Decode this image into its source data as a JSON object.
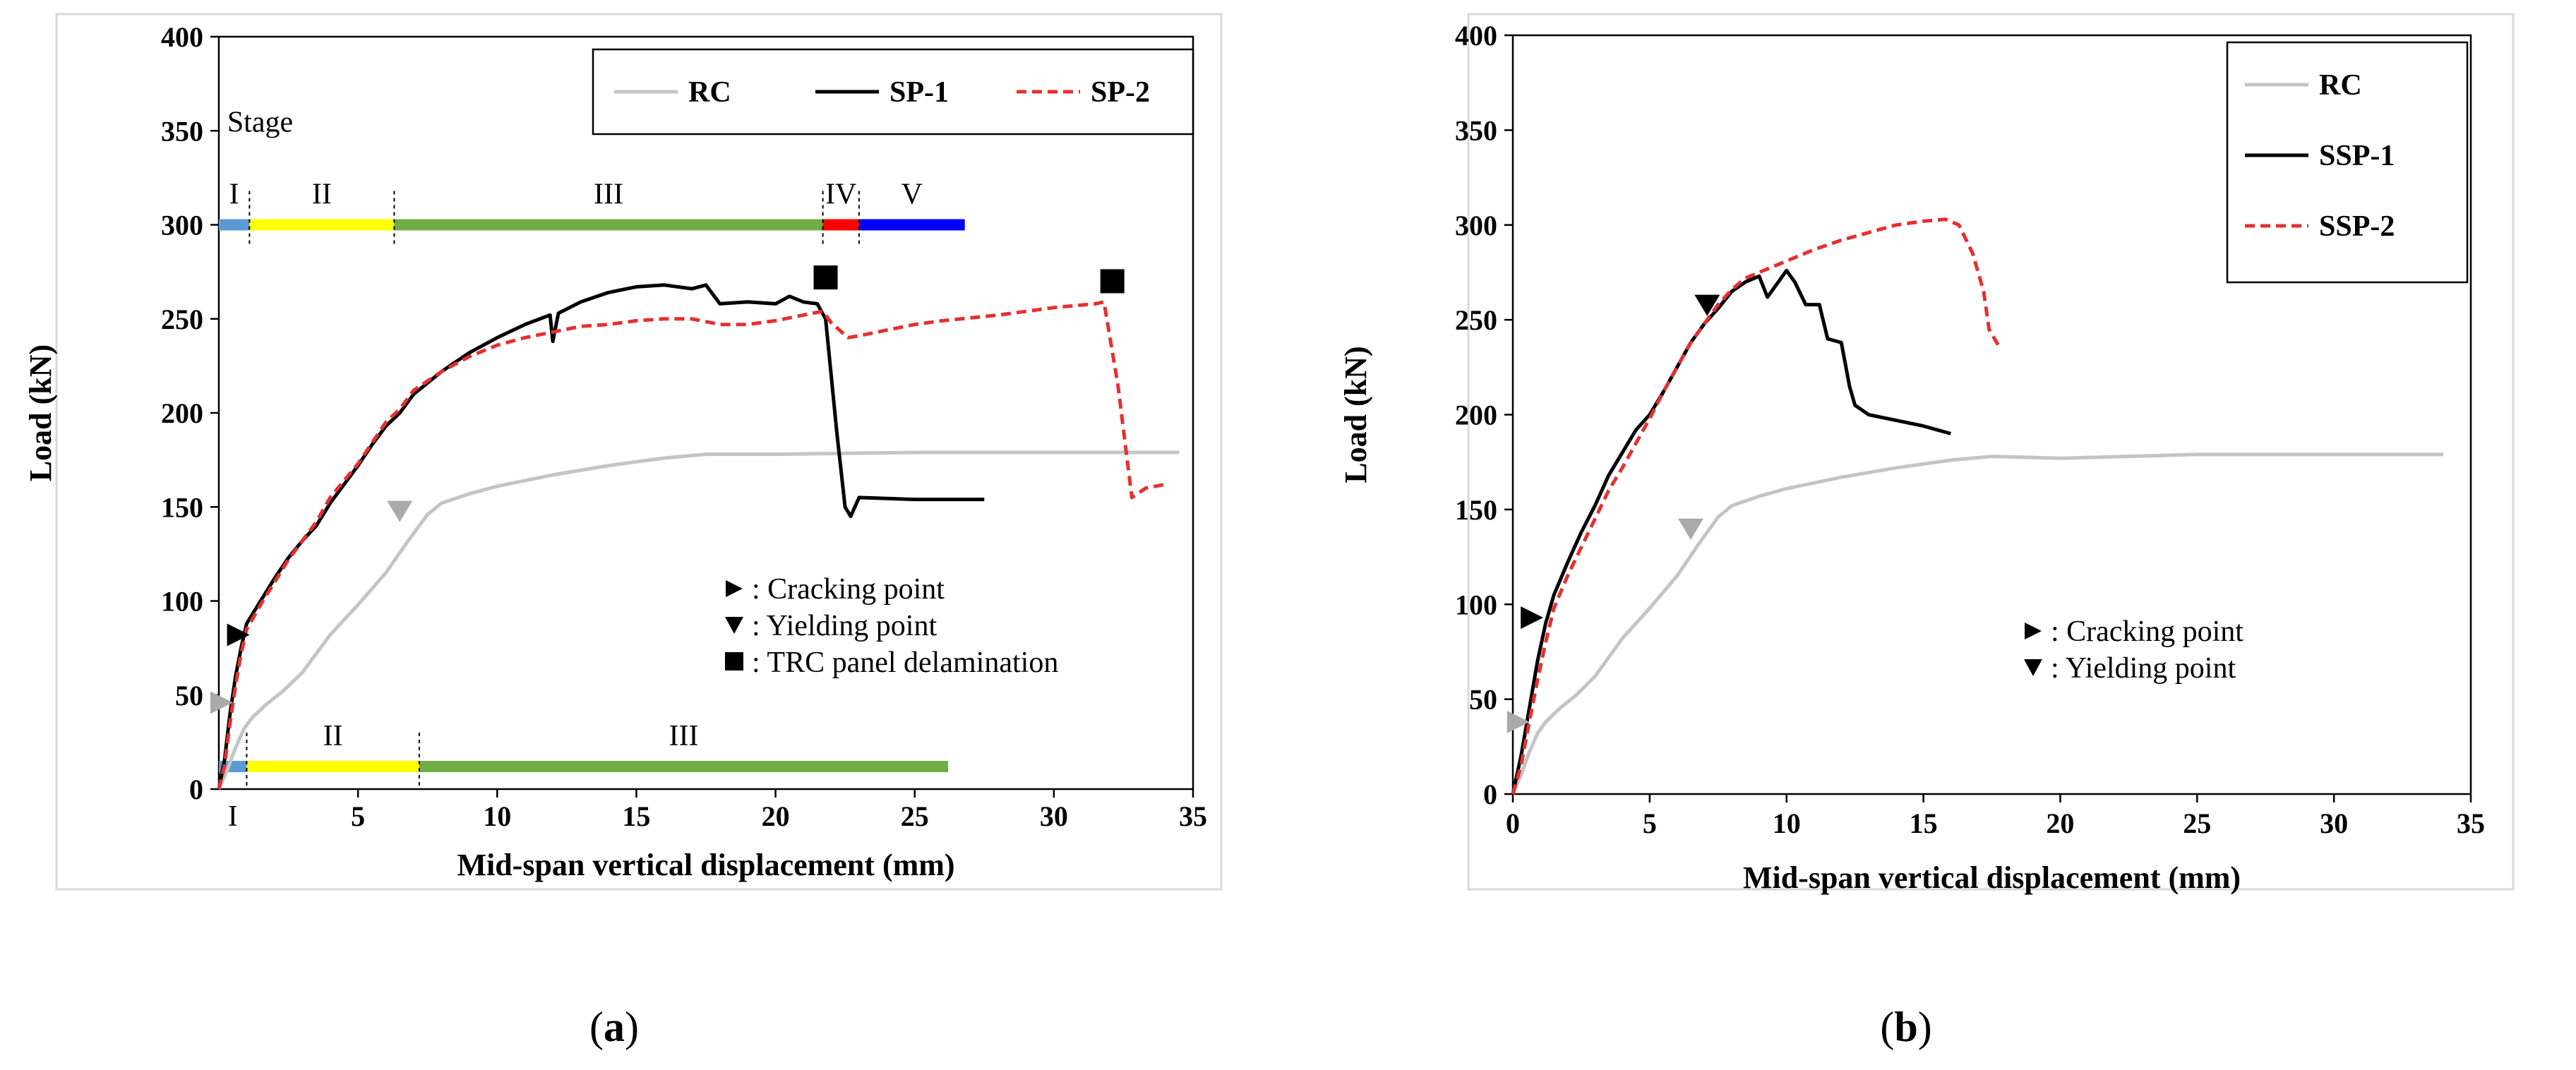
{
  "chart_data": [
    {
      "panel": "a",
      "type": "line",
      "xlabel": "Mid-span vertical displacement (mm)",
      "ylabel": "Load (kN)",
      "xlim": [
        0,
        35
      ],
      "ylim": [
        0,
        400
      ],
      "xticks": [
        5,
        10,
        15,
        20,
        25,
        30,
        35
      ],
      "yticks": [
        0,
        50,
        100,
        150,
        200,
        250,
        300,
        350,
        400
      ],
      "extra_tick_labels": [
        {
          "label": "I",
          "x": 0.5
        }
      ],
      "grid": false,
      "legend_position": "top-right",
      "series": [
        {
          "name": "RC",
          "color": "#c4c4c4",
          "style": "solid",
          "points": [
            [
              0,
              0
            ],
            [
              0.3,
              10
            ],
            [
              0.6,
              22
            ],
            [
              0.9,
              32
            ],
            [
              1.2,
              38
            ],
            [
              1.7,
              45
            ],
            [
              2.3,
              52
            ],
            [
              3,
              62
            ],
            [
              3.5,
              72
            ],
            [
              4,
              82
            ],
            [
              5,
              98
            ],
            [
              6,
              115
            ],
            [
              6.8,
              132
            ],
            [
              7.5,
              146
            ],
            [
              8,
              152
            ],
            [
              9,
              157
            ],
            [
              10,
              161
            ],
            [
              12,
              167
            ],
            [
              14,
              172
            ],
            [
              16,
              176
            ],
            [
              17.5,
              178
            ],
            [
              20,
              178
            ],
            [
              25,
              179
            ],
            [
              30,
              179
            ],
            [
              34.5,
              179
            ]
          ]
        },
        {
          "name": "SP-1",
          "color": "#000000",
          "style": "solid",
          "points": [
            [
              0,
              0
            ],
            [
              0.2,
              15
            ],
            [
              0.4,
              40
            ],
            [
              0.6,
              60
            ],
            [
              0.8,
              75
            ],
            [
              1,
              88
            ],
            [
              1.5,
              100
            ],
            [
              2,
              112
            ],
            [
              2.5,
              123
            ],
            [
              3,
              132
            ],
            [
              3.5,
              140
            ],
            [
              4,
              152
            ],
            [
              4.5,
              162
            ],
            [
              5,
              172
            ],
            [
              5.5,
              183
            ],
            [
              6,
              193
            ],
            [
              6.5,
              200
            ],
            [
              7,
              210
            ],
            [
              8,
              222
            ],
            [
              9,
              232
            ],
            [
              10,
              240
            ],
            [
              11,
              247
            ],
            [
              11.9,
              252
            ],
            [
              12,
              238
            ],
            [
              12.2,
              253
            ],
            [
              13,
              259
            ],
            [
              14,
              264
            ],
            [
              15,
              267
            ],
            [
              16,
              268
            ],
            [
              17,
              266
            ],
            [
              17.5,
              268
            ],
            [
              18,
              258
            ],
            [
              19,
              259
            ],
            [
              20,
              258
            ],
            [
              20.5,
              262
            ],
            [
              21,
              259
            ],
            [
              21.5,
              258
            ],
            [
              21.8,
              250
            ],
            [
              22.2,
              190
            ],
            [
              22.5,
              150
            ],
            [
              22.7,
              145
            ],
            [
              23,
              155
            ],
            [
              25,
              154
            ],
            [
              27.5,
              154
            ]
          ]
        },
        {
          "name": "SP-2",
          "color": "#e53030",
          "style": "dashed",
          "points": [
            [
              0,
              0
            ],
            [
              0.2,
              12
            ],
            [
              0.4,
              35
            ],
            [
              0.6,
              55
            ],
            [
              0.8,
              72
            ],
            [
              1,
              85
            ],
            [
              1.5,
              98
            ],
            [
              2,
              110
            ],
            [
              2.5,
              122
            ],
            [
              3,
              132
            ],
            [
              3.5,
              142
            ],
            [
              4,
              155
            ],
            [
              4.5,
              164
            ],
            [
              5,
              173
            ],
            [
              5.5,
              184
            ],
            [
              6,
              195
            ],
            [
              6.5,
              202
            ],
            [
              7,
              212
            ],
            [
              8,
              222
            ],
            [
              9,
              230
            ],
            [
              10,
              236
            ],
            [
              11,
              240
            ],
            [
              12,
              243
            ],
            [
              13,
              246
            ],
            [
              14,
              247
            ],
            [
              15,
              249
            ],
            [
              16,
              250
            ],
            [
              17,
              250
            ],
            [
              18,
              247
            ],
            [
              19,
              247
            ],
            [
              20,
              249
            ],
            [
              21,
              252
            ],
            [
              21.7,
              254
            ],
            [
              22,
              248
            ],
            [
              22.6,
              240
            ],
            [
              23,
              241
            ],
            [
              24,
              244
            ],
            [
              25,
              247
            ],
            [
              26,
              249
            ],
            [
              28,
              252
            ],
            [
              30,
              256
            ],
            [
              31.5,
              258
            ],
            [
              31.8,
              259
            ],
            [
              32.3,
              215
            ],
            [
              32.8,
              155
            ],
            [
              33.3,
              160
            ],
            [
              34,
              162
            ]
          ]
        }
      ],
      "legend": [
        "RC",
        "SP-1",
        "SP-2"
      ],
      "stage_bars": [
        {
          "y": 300,
          "title": "Stage",
          "segments": [
            {
              "label": "I",
              "from": 0,
              "to": 1.1,
              "color": "#5b9bd5"
            },
            {
              "label": "II",
              "from": 1.1,
              "to": 6.3,
              "color": "#ffff00"
            },
            {
              "label": "III",
              "from": 6.3,
              "to": 21.7,
              "color": "#70ad47"
            },
            {
              "label": "IV",
              "from": 21.7,
              "to": 23,
              "color": "#ff0000"
            },
            {
              "label": "V",
              "from": 23,
              "to": 26.8,
              "color": "#0000ff"
            }
          ]
        },
        {
          "y": 12,
          "title": "",
          "segments": [
            {
              "label": "",
              "from": 0,
              "to": 1,
              "color": "#5b9bd5"
            },
            {
              "label": "II",
              "from": 1,
              "to": 7.2,
              "color": "#ffff00"
            },
            {
              "label": "III",
              "from": 7.2,
              "to": 26.2,
              "color": "#70ad47"
            }
          ]
        }
      ],
      "markers": [
        {
          "type": "cracking",
          "x": 0.7,
          "y": 82,
          "color": "#000000"
        },
        {
          "type": "cracking",
          "x": 0.1,
          "y": 46,
          "color": "#aaaaaa"
        },
        {
          "type": "yielding",
          "x": 6.5,
          "y": 148,
          "color": "#aaaaaa"
        },
        {
          "type": "delamination",
          "x": 21.8,
          "y": 272,
          "color": "#000000"
        },
        {
          "type": "delamination",
          "x": 32.1,
          "y": 270,
          "color": "#000000"
        }
      ],
      "annotations": [
        ": Cracking point",
        ": Yielding point",
        ": TRC panel delamination"
      ],
      "panel_label": "a"
    },
    {
      "panel": "b",
      "type": "line",
      "xlabel": "Mid-span vertical displacement (mm)",
      "ylabel": "Load (kN)",
      "xlim": [
        0,
        35
      ],
      "ylim": [
        0,
        400
      ],
      "xticks": [
        0,
        5,
        10,
        15,
        20,
        25,
        30,
        35
      ],
      "yticks": [
        0,
        50,
        100,
        150,
        200,
        250,
        300,
        350,
        400
      ],
      "grid": false,
      "legend_position": "top-right",
      "series": [
        {
          "name": "RC",
          "color": "#c4c4c4",
          "style": "solid",
          "points": [
            [
              0,
              0
            ],
            [
              0.3,
              10
            ],
            [
              0.6,
              22
            ],
            [
              0.9,
              32
            ],
            [
              1.2,
              38
            ],
            [
              1.7,
              45
            ],
            [
              2.3,
              52
            ],
            [
              3,
              62
            ],
            [
              3.5,
              72
            ],
            [
              4,
              82
            ],
            [
              5,
              98
            ],
            [
              6,
              115
            ],
            [
              6.8,
              132
            ],
            [
              7.5,
              146
            ],
            [
              8,
              152
            ],
            [
              9,
              157
            ],
            [
              10,
              161
            ],
            [
              12,
              167
            ],
            [
              14,
              172
            ],
            [
              16,
              176
            ],
            [
              17.5,
              178
            ],
            [
              20,
              177
            ],
            [
              25,
              179
            ],
            [
              30,
              179
            ],
            [
              34,
              179
            ]
          ]
        },
        {
          "name": "SSP-1",
          "color": "#000000",
          "style": "solid",
          "points": [
            [
              0,
              0
            ],
            [
              0.3,
              20
            ],
            [
              0.6,
              45
            ],
            [
              0.9,
              70
            ],
            [
              1.2,
              90
            ],
            [
              1.5,
              105
            ],
            [
              2,
              122
            ],
            [
              2.5,
              138
            ],
            [
              3,
              152
            ],
            [
              3.5,
              168
            ],
            [
              4,
              180
            ],
            [
              4.5,
              192
            ],
            [
              5,
              200
            ],
            [
              5.5,
              212
            ],
            [
              6,
              225
            ],
            [
              6.5,
              238
            ],
            [
              7,
              248
            ],
            [
              7.5,
              256
            ],
            [
              8,
              265
            ],
            [
              8.5,
              270
            ],
            [
              9,
              273
            ],
            [
              9.3,
              262
            ],
            [
              9.7,
              270
            ],
            [
              10,
              276
            ],
            [
              10.3,
              270
            ],
            [
              10.7,
              258
            ],
            [
              11.2,
              258
            ],
            [
              11.5,
              240
            ],
            [
              12,
              238
            ],
            [
              12.3,
              215
            ],
            [
              12.5,
              205
            ],
            [
              13,
              200
            ],
            [
              14,
              197
            ],
            [
              15,
              194
            ],
            [
              16,
              190
            ]
          ]
        },
        {
          "name": "SSP-2",
          "color": "#e53030",
          "style": "dashed",
          "points": [
            [
              0,
              0
            ],
            [
              0.3,
              15
            ],
            [
              0.6,
              38
            ],
            [
              0.9,
              60
            ],
            [
              1.2,
              80
            ],
            [
              1.5,
              98
            ],
            [
              2,
              115
            ],
            [
              2.5,
              130
            ],
            [
              3,
              145
            ],
            [
              3.5,
              160
            ],
            [
              4,
              172
            ],
            [
              4.5,
              185
            ],
            [
              5,
              198
            ],
            [
              5.5,
              212
            ],
            [
              6,
              225
            ],
            [
              6.5,
              238
            ],
            [
              7,
              248
            ],
            [
              7.5,
              258
            ],
            [
              8,
              266
            ],
            [
              8.5,
              272
            ],
            [
              9,
              275
            ],
            [
              10,
              281
            ],
            [
              11,
              287
            ],
            [
              12,
              292
            ],
            [
              13,
              296
            ],
            [
              14,
              300
            ],
            [
              15,
              302
            ],
            [
              15.8,
              303
            ],
            [
              16.3,
              300
            ],
            [
              16.8,
              285
            ],
            [
              17.2,
              265
            ],
            [
              17.4,
              245
            ],
            [
              17.8,
              235
            ]
          ]
        }
      ],
      "legend": [
        "RC",
        "SSP-1",
        "SSP-2"
      ],
      "markers": [
        {
          "type": "cracking",
          "x": 0.7,
          "y": 93,
          "color": "#000000"
        },
        {
          "type": "cracking",
          "x": 0.2,
          "y": 38,
          "color": "#aaaaaa"
        },
        {
          "type": "yielding",
          "x": 7.1,
          "y": 258,
          "color": "#000000"
        },
        {
          "type": "yielding",
          "x": 6.5,
          "y": 140,
          "color": "#aaaaaa"
        }
      ],
      "annotations": [
        ": Cracking point",
        ": Yielding point"
      ],
      "panel_label": "b"
    }
  ]
}
